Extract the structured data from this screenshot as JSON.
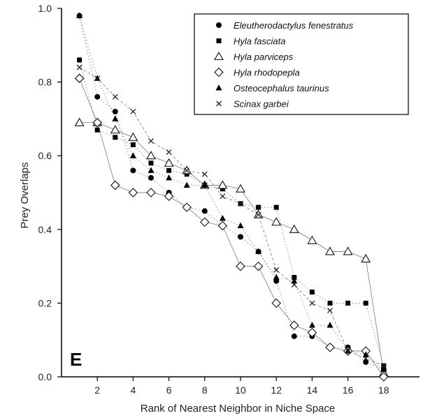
{
  "chart_data": {
    "type": "scatter",
    "panel_label": "E",
    "xlabel": "Rank of Nearest Neighbor in Niche Space",
    "ylabel": "Prey Overlaps",
    "xlim": [
      0,
      20
    ],
    "ylim": [
      0,
      1.0
    ],
    "xticks": [
      2,
      4,
      6,
      8,
      10,
      12,
      14,
      16,
      18
    ],
    "yticks": [
      0.0,
      0.2,
      0.4,
      0.6,
      0.8,
      1.0
    ],
    "ytick_labels": [
      "0.0",
      "0.2",
      "0.4",
      "0.6",
      "0.8",
      "1.0"
    ],
    "grid": false,
    "legend_position": "top-right",
    "x": [
      1,
      2,
      3,
      4,
      5,
      6,
      7,
      8,
      9,
      10,
      11,
      12,
      13,
      14,
      15,
      16,
      17,
      18
    ],
    "series": [
      {
        "name": "Eleutherodactylus fenestratus",
        "marker": "circle",
        "values": [
          0.98,
          0.76,
          0.72,
          0.56,
          0.54,
          0.5,
          0.46,
          0.45,
          0.41,
          0.38,
          0.34,
          0.26,
          0.11,
          0.11,
          0.08,
          0.08,
          0.04,
          0.02
        ]
      },
      {
        "name": "Hyla fasciata",
        "marker": "square",
        "values": [
          0.86,
          0.67,
          0.65,
          0.63,
          0.58,
          0.56,
          0.55,
          0.52,
          0.51,
          0.47,
          0.46,
          0.46,
          0.27,
          0.23,
          0.2,
          0.2,
          0.2,
          0.03
        ]
      },
      {
        "name": "Hyla parviceps",
        "marker": "triangle-open",
        "values": [
          0.69,
          0.69,
          0.67,
          0.65,
          0.6,
          0.58,
          0.56,
          0.52,
          0.52,
          0.51,
          0.44,
          0.42,
          0.4,
          0.37,
          0.34,
          0.34,
          0.32,
          0.01
        ]
      },
      {
        "name": "Hyla rhodopepla",
        "marker": "diamond-open",
        "values": [
          0.81,
          0.69,
          0.52,
          0.5,
          0.5,
          0.49,
          0.46,
          0.42,
          0.41,
          0.3,
          0.3,
          0.2,
          0.14,
          0.12,
          0.08,
          0.07,
          0.07,
          0.0
        ]
      },
      {
        "name": "Osteocephalus taurinus",
        "marker": "triangle-filled",
        "values": [
          0.98,
          0.81,
          0.7,
          0.6,
          0.56,
          0.54,
          0.52,
          0.52,
          0.43,
          0.41,
          0.34,
          0.27,
          0.26,
          0.14,
          0.14,
          0.07,
          0.06,
          0.02
        ]
      },
      {
        "name": "Scinax garbei",
        "marker": "cross",
        "values": [
          0.84,
          0.81,
          0.76,
          0.72,
          0.64,
          0.61,
          0.56,
          0.55,
          0.49,
          0.47,
          0.44,
          0.29,
          0.25,
          0.2,
          0.18,
          0.07,
          0.05,
          0.03
        ]
      }
    ]
  }
}
